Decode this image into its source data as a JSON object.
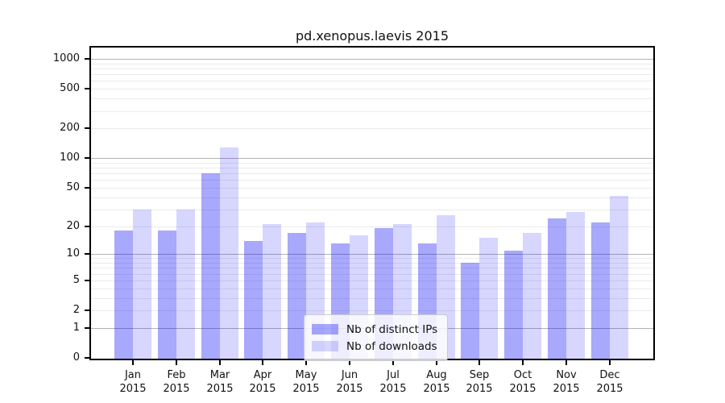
{
  "chart_data": {
    "type": "bar",
    "title": "pd.xenopus.laevis 2015",
    "categories": [
      "Jan 2015",
      "Feb 2015",
      "Mar 2015",
      "Apr 2015",
      "May 2015",
      "Jun 2015",
      "Jul 2015",
      "Aug 2015",
      "Sep 2015",
      "Oct 2015",
      "Nov 2015",
      "Dec 2015"
    ],
    "series": [
      {
        "name": "Nb of distinct IPs",
        "color": "rgba(0,0,250,0.34)",
        "values": [
          18,
          18,
          70,
          14,
          17,
          13,
          19,
          13,
          8,
          11,
          24,
          22
        ]
      },
      {
        "name": "Nb of downloads",
        "color": "rgba(0,0,250,0.16)",
        "values": [
          30,
          30,
          128,
          21,
          22,
          16,
          21,
          26,
          15,
          17,
          28,
          41
        ]
      }
    ],
    "yscale": "log1p",
    "yticks": [
      0,
      1,
      2,
      5,
      10,
      20,
      50,
      100,
      200,
      500,
      1000
    ],
    "major_gridlines": [
      1,
      10,
      100,
      1000
    ],
    "ylim": [
      0,
      1320
    ],
    "grid": true,
    "legend_position": "bottom-center",
    "colors": {
      "spine": "#000000",
      "major_grid": "#b3b3b3",
      "minor_grid": "#ebebeb",
      "legend_border": "#cccccc"
    }
  }
}
